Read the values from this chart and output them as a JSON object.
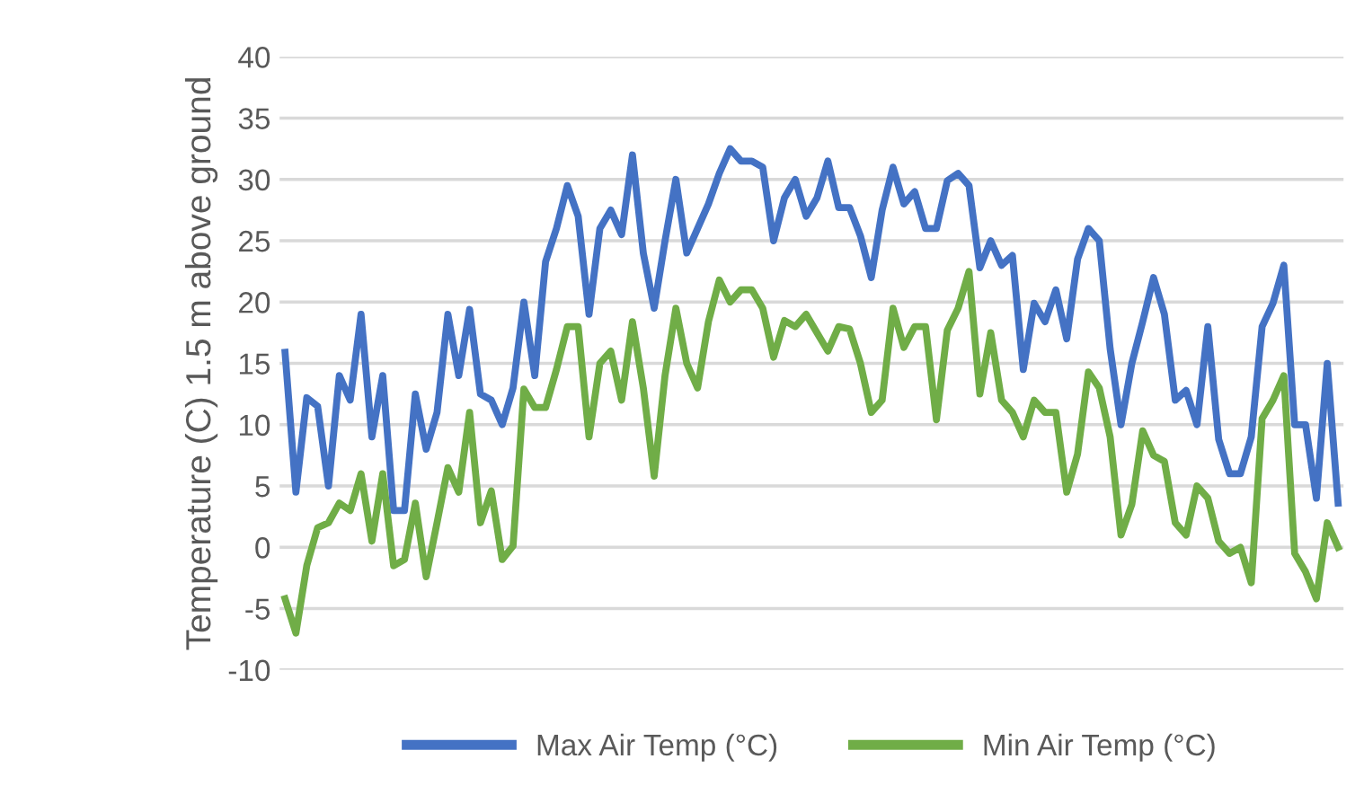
{
  "chart_data": {
    "type": "line",
    "ylabel": "Temperature (C) 1.5 m above ground",
    "categories": [
      null,
      null,
      null,
      null,
      null,
      null,
      null,
      null,
      null,
      null,
      null,
      null,
      null,
      null,
      null,
      null,
      null,
      null,
      null,
      null,
      null,
      null,
      null,
      null,
      null,
      null,
      null,
      null,
      null,
      null,
      null,
      null,
      null,
      null,
      null,
      null,
      null,
      null,
      null,
      null,
      null,
      null,
      null,
      null,
      null,
      null,
      null,
      null,
      null,
      null,
      null,
      null,
      null,
      null,
      null,
      null,
      null,
      null,
      null,
      null,
      null,
      null,
      null,
      null,
      null,
      null,
      null,
      null,
      null,
      null,
      null,
      null,
      null,
      null,
      null,
      null,
      null,
      null,
      null,
      null,
      null,
      null,
      null,
      null,
      null,
      null,
      null,
      null,
      null,
      null,
      null,
      null,
      null,
      null,
      null,
      null,
      null,
      null
    ],
    "series": [
      {
        "name": "Max Air Temp (°C)",
        "color": "#4472c4",
        "values": [
          15.9,
          4.5,
          12.2,
          11.5,
          5,
          14,
          12,
          19,
          9,
          14,
          3,
          3,
          12.5,
          8,
          11,
          19,
          14,
          19.4,
          12.5,
          12,
          10,
          13,
          20,
          14,
          23.3,
          26,
          29.5,
          27,
          19,
          26,
          27.5,
          25.5,
          32,
          24,
          19.5,
          25,
          30,
          24,
          26,
          28,
          30.5,
          32.5,
          31.5,
          31.5,
          31,
          25,
          28.5,
          30,
          27,
          28.5,
          31.5,
          27.7,
          27.7,
          25.4,
          22,
          27.5,
          31,
          28,
          29,
          26,
          26,
          29.9,
          30.5,
          29.5,
          22.8,
          25,
          23,
          23.8,
          14.5,
          19.9,
          18.4,
          21,
          17,
          23.5,
          26,
          25,
          16.2,
          10,
          15,
          18.4,
          22,
          19,
          12,
          12.8,
          10,
          18,
          8.8,
          6,
          6,
          9,
          18,
          19.9,
          23,
          10,
          10,
          4,
          15,
          3.6
        ]
      },
      {
        "name": "Min Air Temp (°C)",
        "color": "#70ad47",
        "values": [
          -4.2,
          -7,
          -1.5,
          1.6,
          2,
          3.6,
          3,
          6,
          0.5,
          6,
          -1.5,
          -1,
          3.6,
          -2.4,
          2,
          6.5,
          4.5,
          11,
          2,
          4.6,
          -1,
          0.1,
          12.9,
          11.4,
          11.4,
          14.5,
          18,
          18,
          9,
          15,
          16,
          12,
          18.4,
          13,
          5.8,
          14,
          19.5,
          15,
          13,
          18.4,
          21.8,
          20,
          21,
          21,
          19.5,
          15.5,
          18.5,
          18,
          19,
          17.5,
          16,
          18,
          17.8,
          15,
          11,
          12,
          19.5,
          16.3,
          18,
          18,
          10.4,
          17.7,
          19.5,
          22.5,
          12.5,
          17.5,
          12,
          11,
          9,
          12,
          11,
          11,
          4.5,
          7.6,
          14.3,
          13,
          9,
          1,
          3.5,
          9.5,
          7.5,
          7,
          2,
          1,
          5,
          4,
          0.5,
          -0.5,
          0,
          -2.9,
          10.5,
          12,
          14,
          -0.5,
          -2,
          -4.2,
          2,
          0
        ]
      }
    ],
    "ylim": [
      -10,
      40
    ],
    "yticks": [
      -10,
      -5,
      0,
      5,
      10,
      15,
      20,
      25,
      30,
      35,
      40
    ],
    "grid": "y",
    "legend": "bottom",
    "line_style": "solid",
    "marker": "none",
    "tick_labels": "y"
  }
}
